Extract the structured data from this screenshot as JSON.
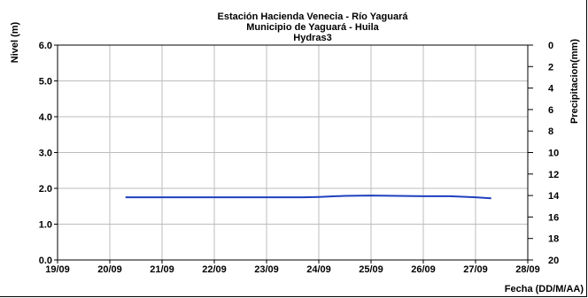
{
  "chart_data": {
    "type": "line",
    "title": "Estación Hacienda  Venecia - Río  Yaguará",
    "subtitle": "Municipio de Yaguará - Huila",
    "subtitle2": "Hydras3",
    "ylabel": "Nivel (m)",
    "y2label": "Precipitacion(mm)",
    "xlabel": "Fecha (DD/M/AA)",
    "x_ticks": [
      "19/09",
      "20/09",
      "21/09",
      "22/09",
      "23/09",
      "24/09",
      "25/09",
      "26/09",
      "27/09",
      "28/09"
    ],
    "y_ticks": [
      "0.0",
      "1.0",
      "2.0",
      "3.0",
      "4.0",
      "5.0",
      "6.0"
    ],
    "y2_ticks": [
      "0",
      "2",
      "4",
      "6",
      "8",
      "10",
      "12",
      "14",
      "16",
      "18",
      "20"
    ],
    "ylim": [
      0,
      6
    ],
    "y2lim": [
      0,
      20
    ],
    "y2_inverted": true,
    "grid": true,
    "series": [
      {
        "color": "#1f3fbf",
        "x": [
          1.3,
          2.0,
          3.0,
          4.0,
          4.7,
          5.0,
          5.5,
          6.0,
          6.5,
          7.0,
          7.5,
          8.0,
          8.3
        ],
        "values": [
          1.75,
          1.75,
          1.75,
          1.75,
          1.75,
          1.76,
          1.79,
          1.8,
          1.79,
          1.78,
          1.78,
          1.75,
          1.72
        ]
      }
    ]
  }
}
